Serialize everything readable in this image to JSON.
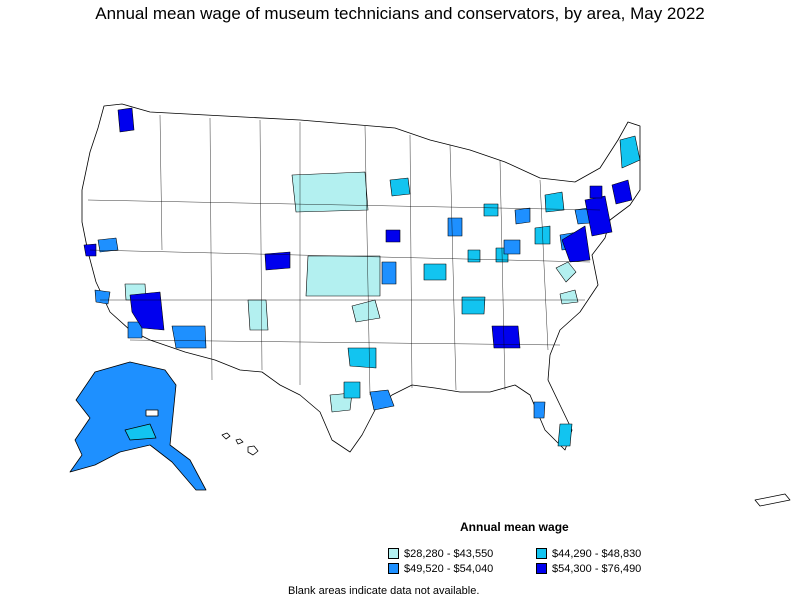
{
  "title": "Annual mean wage of museum technicians and conservators, by area, May 2022",
  "legend": {
    "title": "Annual mean wage",
    "items": [
      {
        "label": "$28,280 - $43,550",
        "color": "#b3f0f0"
      },
      {
        "label": "$44,290 - $48,830",
        "color": "#12c4f0"
      },
      {
        "label": "$49,520 - $54,040",
        "color": "#1e90ff"
      },
      {
        "label": "$54,300 - $76,490",
        "color": "#0000ee"
      }
    ]
  },
  "note": "Blank areas indicate data not available.",
  "colors": {
    "no_data": "#ffffff",
    "border": "#000000"
  }
}
